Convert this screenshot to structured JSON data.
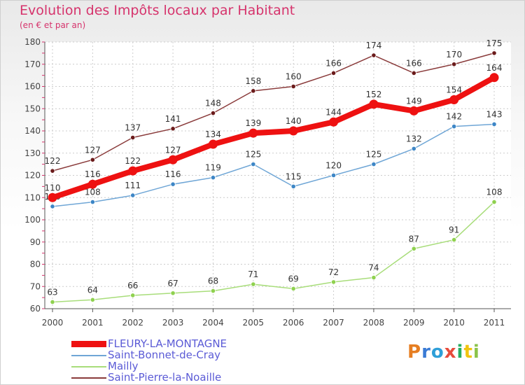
{
  "header": {
    "title": "Evolution des Impôts locaux par Habitant",
    "subtitle": "(en € et par an)"
  },
  "logo": {
    "text": "Proxiti",
    "letters": [
      {
        "ch": "P",
        "color": "#e67e22"
      },
      {
        "ch": "r",
        "color": "#3a7bd5"
      },
      {
        "ch": "o",
        "color": "#2e9fd8"
      },
      {
        "ch": "x",
        "color": "#e74c3c"
      },
      {
        "ch": "i",
        "color": "#27ae60"
      },
      {
        "ch": "t",
        "color": "#f1c40f"
      },
      {
        "ch": "i",
        "color": "#8bc34a"
      }
    ]
  },
  "chart_data": {
    "type": "line",
    "title": "Evolution des Impôts locaux par Habitant",
    "subtitle": "(en € et par an)",
    "xlabel": "",
    "ylabel": "",
    "categories": [
      "2000",
      "2001",
      "2002",
      "2003",
      "2004",
      "2005",
      "2006",
      "2007",
      "2008",
      "2009",
      "2010",
      "2011"
    ],
    "ylim": [
      60,
      180
    ],
    "yticks": [
      60,
      70,
      80,
      90,
      100,
      110,
      120,
      130,
      140,
      150,
      160,
      170,
      180
    ],
    "grid": true,
    "legend_position": "bottom-left",
    "series": [
      {
        "name": "FLEURY-LA-MONTAGNE",
        "values": [
          110,
          116,
          122,
          127,
          134,
          139,
          140,
          144,
          152,
          149,
          154,
          164
        ],
        "color": "#ee1111",
        "highlight": true
      },
      {
        "name": "Saint-Bonnet-de-Cray",
        "values": [
          106,
          108,
          111,
          116,
          119,
          125,
          115,
          120,
          125,
          132,
          142,
          143
        ],
        "color": "#6fa6d6",
        "marker_color": "#3d86c6"
      },
      {
        "name": "Mailly",
        "values": [
          63,
          64,
          66,
          67,
          68,
          71,
          69,
          72,
          74,
          87,
          91,
          108
        ],
        "color": "#a8dd7a",
        "marker_color": "#8fd14f"
      },
      {
        "name": "Saint-Pierre-la-Noaille",
        "values": [
          122,
          127,
          137,
          141,
          148,
          158,
          160,
          166,
          174,
          166,
          170,
          175
        ],
        "color": "#8a3b3b",
        "marker_color": "#6b1b1b"
      }
    ]
  }
}
